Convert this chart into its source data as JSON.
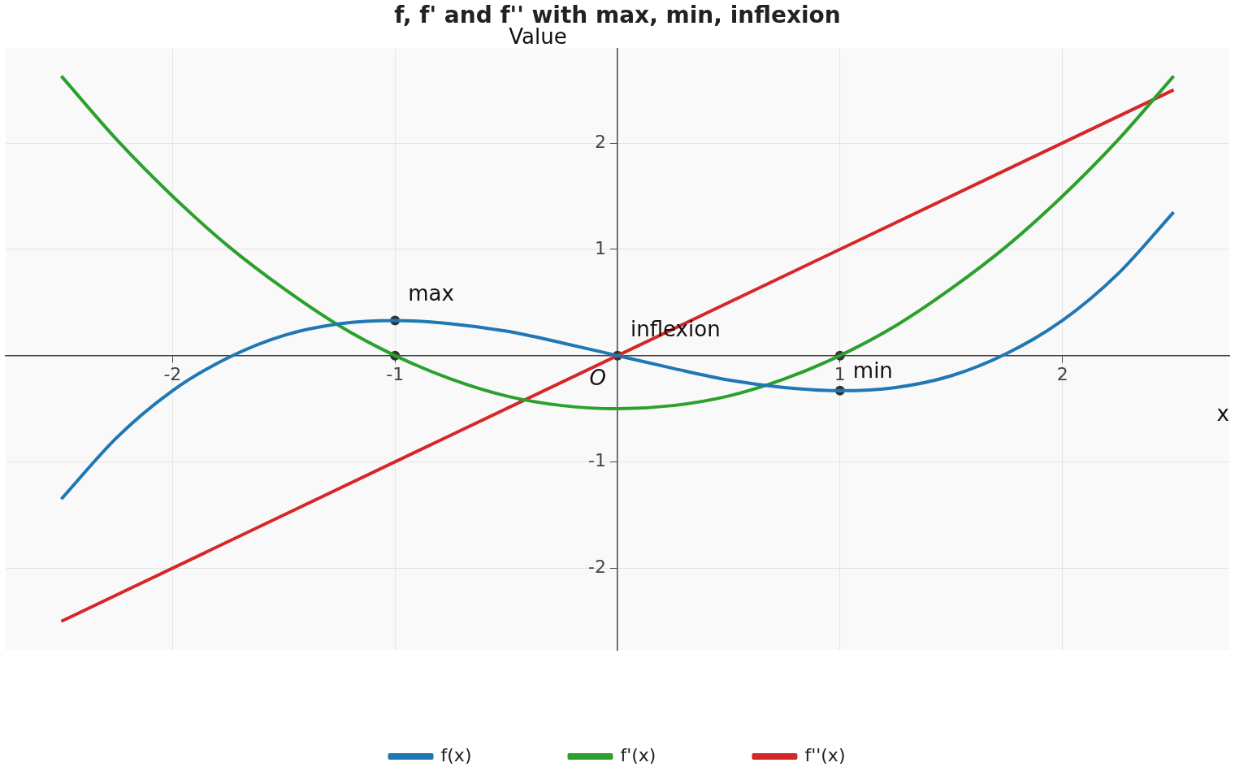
{
  "chart_data": {
    "type": "line",
    "title": "f, f' and f'' with max, min, inflexion",
    "xlabel": "x",
    "ylabel": "Value",
    "x": [
      -2.5,
      -2.25,
      -2,
      -1.75,
      -1.5,
      -1.25,
      -1,
      -0.75,
      -0.5,
      -0.25,
      0,
      0.25,
      0.5,
      0.75,
      1,
      1.25,
      1.5,
      1.75,
      2,
      2.25,
      2.5
    ],
    "series": [
      {
        "name": "f(x)",
        "color": "#1f77b4",
        "values": [
          -1.35,
          -0.77,
          -0.33,
          -0.02,
          0.19,
          0.3,
          0.33,
          0.3,
          0.23,
          0.12,
          0,
          -0.12,
          -0.23,
          -0.3,
          -0.33,
          -0.3,
          -0.19,
          0.02,
          0.33,
          0.77,
          1.35
        ]
      },
      {
        "name": "f'(x)",
        "color": "#2ca02c",
        "values": [
          2.63,
          2.03,
          1.5,
          1.03,
          0.63,
          0.28,
          0,
          -0.22,
          -0.38,
          -0.47,
          -0.5,
          -0.47,
          -0.38,
          -0.22,
          0,
          0.28,
          0.63,
          1.03,
          1.5,
          2.03,
          2.63
        ]
      },
      {
        "name": "f''(x)",
        "color": "#d62728",
        "x": [
          -2.5,
          2.5
        ],
        "values": [
          -2.5,
          2.5
        ]
      },
      {
        "type": "scatter",
        "color": "#333333",
        "x": [
          -1,
          -1,
          0,
          1,
          1
        ],
        "values": [
          0.33,
          0,
          0,
          0,
          -0.33
        ]
      }
    ],
    "xlim": [
      -2.75,
      2.75
    ],
    "xticks": [
      -2,
      -1,
      1,
      2
    ],
    "ylim": [
      -2.77,
      2.89
    ],
    "yticks": [
      -2,
      -1,
      1,
      2
    ],
    "grid": true,
    "legend": "bottom",
    "annotations": [
      {
        "text": "max",
        "x": -1,
        "y": 0.33
      },
      {
        "text": "inflexion",
        "x": 0,
        "y": 0
      },
      {
        "text": "min",
        "x": 1,
        "y": -0.33
      },
      {
        "text": "O",
        "x": 0,
        "y": 0
      }
    ]
  }
}
